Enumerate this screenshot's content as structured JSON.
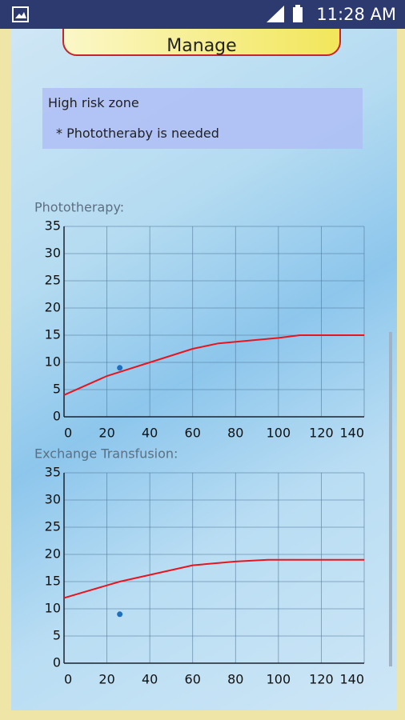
{
  "status_bar": {
    "time": "11:28 AM"
  },
  "button": {
    "label": "Manage"
  },
  "info": {
    "zone": "High risk zone",
    "note": "* Phototheraby is needed"
  },
  "chart_data": [
    {
      "type": "line",
      "title": "Phototherapy:",
      "xlim": [
        0,
        140
      ],
      "xticks": [
        0,
        20,
        40,
        60,
        80,
        100,
        120,
        140
      ],
      "ylim": [
        0,
        35
      ],
      "yticks": [
        0,
        5,
        10,
        15,
        20,
        25,
        30,
        35
      ],
      "grid": true,
      "series": [
        {
          "type": "line",
          "color": "#e8141e",
          "x": [
            0,
            20,
            40,
            60,
            72,
            100,
            110,
            140
          ],
          "values": [
            4,
            7.5,
            10,
            12.5,
            13.5,
            14.5,
            15,
            15
          ]
        },
        {
          "type": "scatter",
          "color": "#1f6fc0",
          "x": [
            26
          ],
          "values": [
            9
          ]
        }
      ]
    },
    {
      "type": "line",
      "title": "Exchange Transfusion:",
      "xlim": [
        0,
        140
      ],
      "xticks": [
        0,
        20,
        40,
        60,
        80,
        100,
        120,
        140
      ],
      "ylim": [
        0,
        35
      ],
      "yticks": [
        0,
        5,
        10,
        15,
        20,
        25,
        30,
        35
      ],
      "grid": true,
      "series": [
        {
          "type": "line",
          "color": "#e8141e",
          "x": [
            0,
            26,
            60,
            80,
            95,
            140
          ],
          "values": [
            12,
            15,
            18,
            18.7,
            19,
            19
          ]
        },
        {
          "type": "scatter",
          "color": "#1f6fc0",
          "x": [
            26
          ],
          "values": [
            9
          ]
        }
      ]
    }
  ]
}
